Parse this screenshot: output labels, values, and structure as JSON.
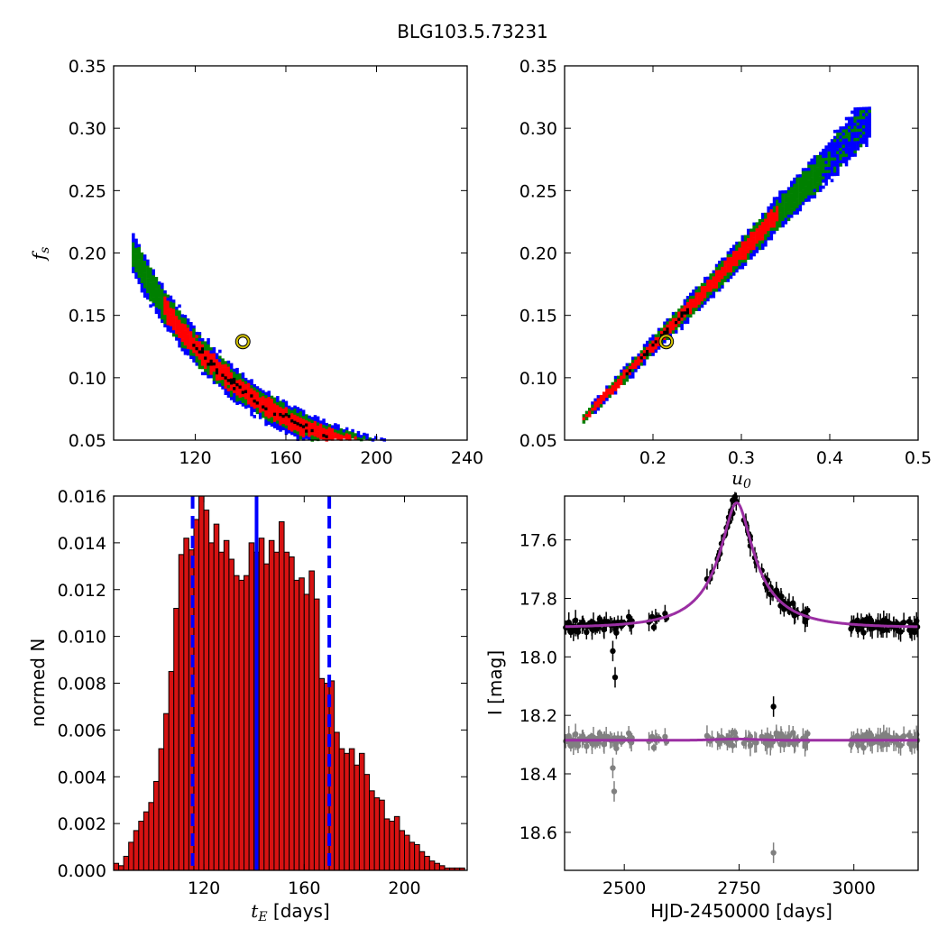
{
  "figure": {
    "title": "BLG103.5.73231"
  },
  "colors": {
    "blue": "#0000ff",
    "green": "#008000",
    "red": "#ff0000",
    "black": "#000000",
    "marker_ring": "#d4c400",
    "model": "#9b2fa3",
    "residual": "#808080",
    "hist_bar": "#d71212"
  },
  "chart_data": [
    {
      "id": "fs_vs_tE",
      "type": "heatmap",
      "xlabel": "",
      "ylabel": "f_s",
      "xlim": [
        84,
        240
      ],
      "ylim": [
        0.05,
        0.35
      ],
      "xticks": [
        "120",
        "160",
        "200",
        "240"
      ],
      "yticks": [
        "0.05",
        "0.10",
        "0.15",
        "0.20",
        "0.25",
        "0.30",
        "0.35"
      ],
      "levels": [
        "blue",
        "green",
        "red",
        "black"
      ],
      "curve": {
        "a": 0.0183,
        "b": 0.18,
        "c": 1.93,
        "x_range": [
          92,
          225
        ]
      },
      "best_fit": {
        "x": 141,
        "y": 0.129
      }
    },
    {
      "id": "fs_vs_u0",
      "type": "heatmap",
      "xlabel": "u_0",
      "ylabel": "",
      "xlim": [
        0.1,
        0.5
      ],
      "ylim": [
        0.05,
        0.35
      ],
      "xticks": [
        "0.2",
        "0.3",
        "0.4",
        "0.5"
      ],
      "yticks": [
        "0.05",
        "0.10",
        "0.15",
        "0.20",
        "0.25",
        "0.30",
        "0.35"
      ],
      "levels": [
        "blue",
        "green",
        "red",
        "black"
      ],
      "curve": {
        "x_range": [
          0.12,
          0.445
        ],
        "slope": 0.745,
        "quad": 0.5
      },
      "best_fit": {
        "x": 0.215,
        "y": 0.129
      }
    },
    {
      "id": "tE_histogram",
      "type": "bar",
      "xlabel": "t_E [days]",
      "ylabel": "normed N",
      "xlim": [
        84,
        225
      ],
      "ylim": [
        0,
        0.016
      ],
      "xticks": [
        "120",
        "160",
        "200"
      ],
      "yticks": [
        "0.000",
        "0.002",
        "0.004",
        "0.006",
        "0.008",
        "0.010",
        "0.012",
        "0.014",
        "0.016"
      ],
      "bin_start": 84,
      "bin_width": 2,
      "values": [
        0.0003,
        0.0002,
        0.0006,
        0.0012,
        0.0017,
        0.0021,
        0.0025,
        0.0029,
        0.0038,
        0.0052,
        0.0067,
        0.0085,
        0.0112,
        0.0135,
        0.0142,
        0.0137,
        0.015,
        0.016,
        0.0154,
        0.014,
        0.0148,
        0.0136,
        0.0141,
        0.0133,
        0.0126,
        0.0124,
        0.0126,
        0.014,
        0.0136,
        0.0142,
        0.0131,
        0.0141,
        0.0136,
        0.0149,
        0.0136,
        0.0134,
        0.0124,
        0.0125,
        0.0118,
        0.0128,
        0.0116,
        0.0082,
        0.008,
        0.0081,
        0.0059,
        0.0052,
        0.005,
        0.0052,
        0.0045,
        0.005,
        0.0041,
        0.0034,
        0.0031,
        0.003,
        0.0022,
        0.0021,
        0.0023,
        0.0017,
        0.0015,
        0.0012,
        0.0011,
        0.0008,
        0.0006,
        0.0004,
        0.0003,
        0.0002,
        0.0001,
        0.0001,
        0.0001,
        0.0001
      ],
      "median": 141,
      "bounds": [
        115.5,
        170
      ]
    },
    {
      "id": "light_curve",
      "type": "scatter",
      "xlabel": "HJD-2450000 [days]",
      "ylabel": "I [mag]",
      "xlim": [
        2370,
        3140
      ],
      "ylim": [
        18.73,
        17.45
      ],
      "xticks": [
        "2500",
        "2750",
        "3000"
      ],
      "yticks": [
        "17.6",
        "17.8",
        "18.0",
        "18.2",
        "18.4",
        "18.6"
      ],
      "model": {
        "t0": 2745,
        "tE": 141,
        "u0": 0.215,
        "fs": 0.129,
        "Ibase": 17.9
      },
      "residual_offset": 18.285,
      "series": [
        {
          "role": "data",
          "color": "black"
        },
        {
          "role": "residuals",
          "color": "gray"
        }
      ],
      "outliers": [
        {
          "x": 2475,
          "y": 17.98
        },
        {
          "x": 2480,
          "y": 18.07
        },
        {
          "x": 2825,
          "y": 18.17
        },
        {
          "x": 2825,
          "y": 18.67
        },
        {
          "x": 2478,
          "y": 18.46
        },
        {
          "x": 2475,
          "y": 18.38
        }
      ]
    }
  ]
}
